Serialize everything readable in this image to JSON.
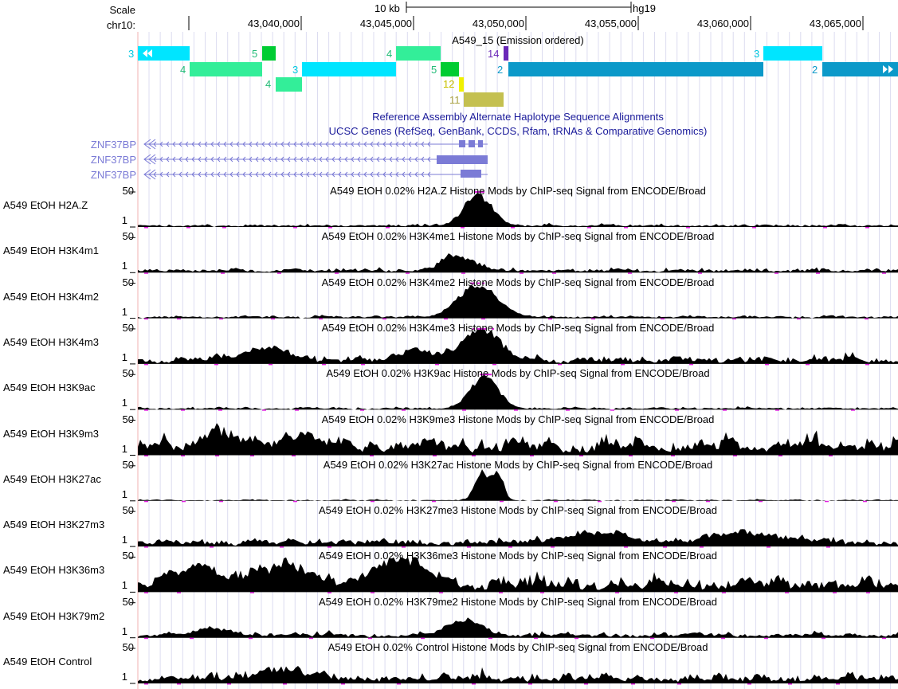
{
  "ruler": {
    "scale_label": "Scale",
    "scale_bar_text": "10 kb",
    "assembly": "hg19",
    "chrom_label": "chr10:",
    "ticks": [
      "43,040,000",
      "43,045,000",
      "43,050,000",
      "43,055,000",
      "43,060,000",
      "43,065,000"
    ]
  },
  "segmentation_track": {
    "title": "A549_15 (Emission ordered)",
    "segments": [
      {
        "state": "3",
        "color": "#00e5ff"
      },
      {
        "state": "4",
        "color": "#33ee99"
      },
      {
        "state": "5",
        "color": "#00cc33"
      },
      {
        "state": "3",
        "color": "#00e5ff"
      },
      {
        "state": "4",
        "color": "#33ee99"
      },
      {
        "state": "4",
        "color": "#33ee99"
      },
      {
        "state": "5",
        "color": "#00cc33"
      },
      {
        "state": "14",
        "color": "#6a28b8"
      },
      {
        "state": "12",
        "color": "#f0f000"
      },
      {
        "state": "11",
        "color": "#c4c050"
      },
      {
        "state": "2",
        "color": "#0b99c9"
      },
      {
        "state": "3",
        "color": "#00e5ff"
      },
      {
        "state": "2",
        "color": "#0b99c9"
      }
    ]
  },
  "alt_haplotypes_title": "Reference Assembly Alternate Haplotype Sequence Alignments",
  "genes_track": {
    "title": "UCSC Genes (RefSeq, GenBank, CCDS, Rfam, tRNAs & Comparative Genomics)",
    "genes": [
      "ZNF37BP",
      "ZNF37BP",
      "ZNF37BP"
    ]
  },
  "signal_tracks": [
    {
      "label": "A549 EtOH H2A.Z",
      "title": "A549 EtOH 0.02% H2A.Z Histone Mods by ChIP-seq Signal from ENCODE/Broad",
      "ymax": "50",
      "ymin": "1"
    },
    {
      "label": "A549 EtOH H3K4m1",
      "title": "A549 EtOH 0.02% H3K4me1 Histone Mods by ChIP-seq Signal from ENCODE/Broad",
      "ymax": "50",
      "ymin": "1"
    },
    {
      "label": "A549 EtOH H3K4m2",
      "title": "A549 EtOH 0.02% H3K4me2 Histone Mods by ChIP-seq Signal from ENCODE/Broad",
      "ymax": "50",
      "ymin": "1"
    },
    {
      "label": "A549 EtOH H3K4m3",
      "title": "A549 EtOH 0.02% H3K4me3 Histone Mods by ChIP-seq Signal from ENCODE/Broad",
      "ymax": "50",
      "ymin": "1"
    },
    {
      "label": "A549 EtOH H3K9ac",
      "title": "A549 EtOH 0.02% H3K9ac Histone Mods by ChIP-seq Signal from ENCODE/Broad",
      "ymax": "50",
      "ymin": "1"
    },
    {
      "label": "A549 EtOH H3K9m3",
      "title": "A549 EtOH 0.02% H3K9me3 Histone Mods by ChIP-seq Signal from ENCODE/Broad",
      "ymax": "50",
      "ymin": "1"
    },
    {
      "label": "A549 EtOH H3K27ac",
      "title": "A549 EtOH 0.02% H3K27ac Histone Mods by ChIP-seq Signal from ENCODE/Broad",
      "ymax": "50",
      "ymin": "1"
    },
    {
      "label": "A549 EtOH H3K27m3",
      "title": "A549 EtOH 0.02% H3K27me3 Histone Mods by ChIP-seq Signal from ENCODE/Broad",
      "ymax": "50",
      "ymin": "1"
    },
    {
      "label": "A549 EtOH H3K36m3",
      "title": "A549 EtOH 0.02% H3K36me3 Histone Mods by ChIP-seq Signal from ENCODE/Broad",
      "ymax": "50",
      "ymin": "1"
    },
    {
      "label": "A549 EtOH H3K79m2",
      "title": "A549 EtOH 0.02% H3K79me2 Histone Mods by ChIP-seq Signal from ENCODE/Broad",
      "ymax": "50",
      "ymin": "1"
    },
    {
      "label": "A549 EtOH Control",
      "title": "A549 EtOH 0.02% Control Histone Mods by ChIP-seq Signal from ENCODE/Broad",
      "ymax": "50",
      "ymin": "1"
    }
  ],
  "colors": {
    "signal_fill": "#000000",
    "clip_marker": "#e020e0",
    "grid_line": "#dcdcf0",
    "gene_color": "#7b7bd6",
    "track_title": "#1a1a9a"
  }
}
